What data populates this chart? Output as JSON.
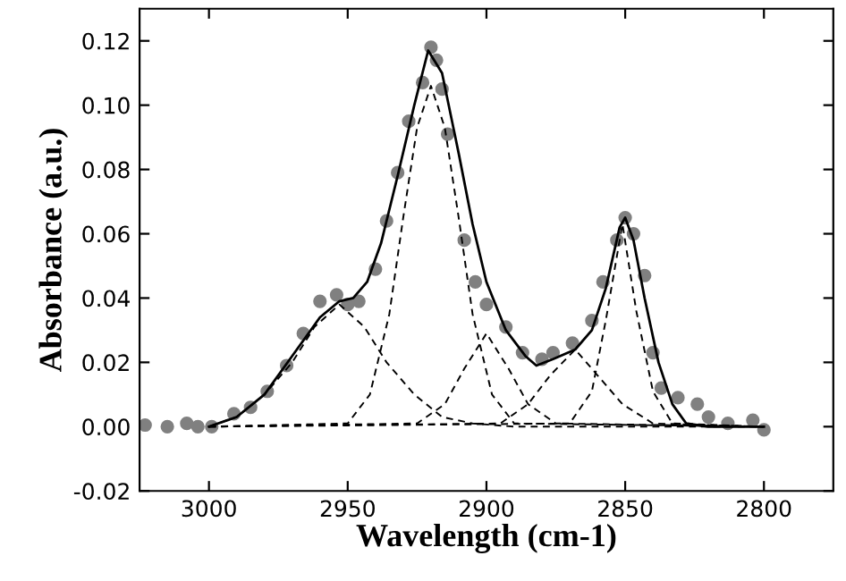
{
  "chart_data": {
    "type": "scatter",
    "xlabel": "Wavelength (cm-1)",
    "ylabel": "Absorbance (a.u.)",
    "xlim": [
      3025,
      2775
    ],
    "ylim": [
      -0.02,
      0.13
    ],
    "xticks": [
      3000,
      2950,
      2900,
      2850,
      2800
    ],
    "yticks": [
      {
        "value": -0.02,
        "label": "-0.02"
      },
      {
        "value": 0,
        "label": "0.00"
      },
      {
        "value": 0.02,
        "label": "0.02"
      },
      {
        "value": 0.04,
        "label": "0.04"
      },
      {
        "value": 0.06,
        "label": "0.06"
      },
      {
        "value": 0.08,
        "label": "0.08"
      },
      {
        "value": 0.1,
        "label": "0.10"
      },
      {
        "value": 0.12,
        "label": "0.12"
      }
    ],
    "grid": false,
    "series": [
      {
        "color": "#808080",
        "marker": "circle",
        "x": [
          3023,
          3015,
          3008,
          3004,
          2999,
          2991,
          2985,
          2979,
          2972,
          2966,
          2960,
          2954,
          2950,
          2946,
          2940,
          2936,
          2932,
          2928,
          2923,
          2920,
          2918,
          2916,
          2914,
          2908,
          2904,
          2900,
          2893,
          2887,
          2880,
          2876,
          2869,
          2862,
          2858,
          2853,
          2850,
          2847,
          2843,
          2840,
          2837,
          2831,
          2824,
          2820,
          2813,
          2804,
          2800
        ],
        "values": [
          0.0005,
          0,
          0.001,
          0,
          0,
          0.004,
          0.006,
          0.011,
          0.019,
          0.029,
          0.039,
          0.041,
          0.038,
          0.039,
          0.049,
          0.064,
          0.079,
          0.095,
          0.107,
          0.118,
          0.114,
          0.105,
          0.091,
          0.058,
          0.045,
          0.038,
          0.031,
          0.023,
          0.021,
          0.023,
          0.026,
          0.033,
          0.045,
          0.058,
          0.065,
          0.06,
          0.047,
          0.023,
          0.012,
          0.009,
          0.007,
          0.003,
          0.001,
          0.002,
          -0.001
        ]
      },
      {
        "type": "line",
        "color": "#000000",
        "line_style": "solid",
        "x": [
          3000,
          2990,
          2980,
          2970,
          2960,
          2953,
          2948,
          2943,
          2938,
          2932,
          2926,
          2921,
          2916,
          2910,
          2905,
          2900,
          2893,
          2886,
          2882,
          2876,
          2868,
          2862,
          2857,
          2852,
          2850,
          2847,
          2843,
          2838,
          2833,
          2828,
          2820,
          2800
        ],
        "values": [
          0,
          0.003,
          0.01,
          0.022,
          0.034,
          0.039,
          0.04,
          0.045,
          0.057,
          0.078,
          0.1,
          0.117,
          0.11,
          0.085,
          0.063,
          0.045,
          0.03,
          0.022,
          0.019,
          0.021,
          0.024,
          0.03,
          0.043,
          0.062,
          0.065,
          0.058,
          0.04,
          0.02,
          0.007,
          0.001,
          0,
          0
        ]
      },
      {
        "type": "line",
        "color": "#000000",
        "line_style": "dashed",
        "x": [
          3000,
          2990,
          2980,
          2970,
          2962,
          2953,
          2944,
          2936,
          2926,
          2916,
          2905,
          2890,
          2800
        ],
        "values": [
          0,
          0.003,
          0.01,
          0.02,
          0.031,
          0.038,
          0.031,
          0.02,
          0.01,
          0.003,
          0.001,
          0,
          0
        ]
      },
      {
        "type": "line",
        "color": "#000000",
        "line_style": "dashed",
        "x": [
          3000,
          2950,
          2942,
          2935,
          2930,
          2925,
          2920,
          2915,
          2910,
          2905,
          2898,
          2890,
          2800
        ],
        "values": [
          0,
          0.001,
          0.01,
          0.035,
          0.065,
          0.093,
          0.106,
          0.093,
          0.065,
          0.035,
          0.01,
          0.001,
          0
        ]
      },
      {
        "type": "line",
        "color": "#000000",
        "line_style": "dashed",
        "x": [
          3000,
          2925,
          2915,
          2908,
          2900,
          2892,
          2885,
          2875,
          2800
        ],
        "values": [
          0,
          0.001,
          0.007,
          0.018,
          0.029,
          0.018,
          0.007,
          0.001,
          0
        ]
      },
      {
        "type": "line",
        "color": "#000000",
        "line_style": "dashed",
        "x": [
          3000,
          2895,
          2885,
          2877,
          2868,
          2860,
          2851,
          2840,
          2800
        ],
        "values": [
          0,
          0.001,
          0.007,
          0.016,
          0.024,
          0.016,
          0.007,
          0.001,
          0
        ]
      },
      {
        "type": "line",
        "color": "#000000",
        "line_style": "dashed",
        "x": [
          3000,
          2870,
          2862,
          2857,
          2851,
          2846,
          2840,
          2833,
          2800
        ],
        "values": [
          0,
          0.001,
          0.011,
          0.033,
          0.063,
          0.036,
          0.011,
          0.001,
          0
        ]
      }
    ]
  }
}
